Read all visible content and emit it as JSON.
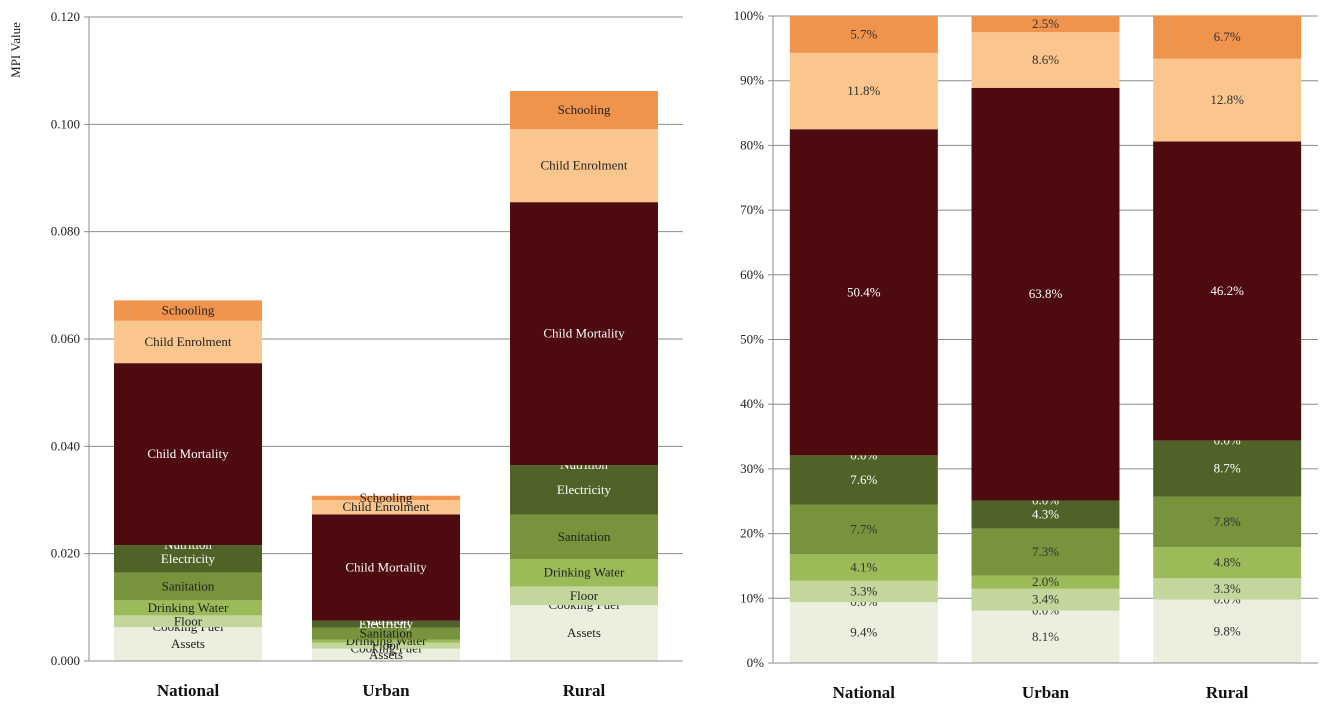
{
  "chart_data": [
    {
      "type": "bar",
      "stacked": true,
      "ylabel": "MPI Value",
      "ylim": [
        0,
        0.12
      ],
      "yticks": [
        "0.000",
        "0.020",
        "0.040",
        "0.060",
        "0.080",
        "0.100",
        "0.120"
      ],
      "categories": [
        "National",
        "Urban",
        "Rural"
      ],
      "grid": true,
      "series": [
        {
          "name": "Assets",
          "color": "#ebefde",
          "label_color": "#222222",
          "values": [
            0.0063,
            0.0023,
            0.0104
          ]
        },
        {
          "name": "Cooking Fuel",
          "color": "#d4e1b5",
          "label_color": "#222222",
          "values": [
            0.0,
            0.0,
            0.0
          ]
        },
        {
          "name": "Floor",
          "color": "#c3d69b",
          "label_color": "#222222",
          "values": [
            0.0022,
            0.0011,
            0.0035
          ]
        },
        {
          "name": "Drinking Water",
          "color": "#9bbb59",
          "label_color": "#222222",
          "values": [
            0.0028,
            0.0006,
            0.0051
          ]
        },
        {
          "name": "Sanitation",
          "color": "#77933c",
          "label_color": "#222222",
          "values": [
            0.0052,
            0.0022,
            0.0083
          ]
        },
        {
          "name": "Electricity",
          "color": "#4f6228",
          "label_color": "#ffffff",
          "values": [
            0.0051,
            0.0013,
            0.0092
          ]
        },
        {
          "name": "Nutrition",
          "color": "#3f4f20",
          "label_color": "#ffffff",
          "values": [
            0.0,
            0.0,
            0.0
          ]
        },
        {
          "name": "Child Mortality",
          "color": "#4d0b0f",
          "label_color": "#ffffff",
          "values": [
            0.0339,
            0.0198,
            0.049
          ]
        },
        {
          "name": "Child Enrolment",
          "color": "#fac68d",
          "label_color": "#222222",
          "values": [
            0.0079,
            0.0027,
            0.0136
          ]
        },
        {
          "name": "Schooling",
          "color": "#f0934c",
          "label_color": "#222222",
          "values": [
            0.0038,
            0.0008,
            0.0071
          ]
        }
      ]
    },
    {
      "type": "bar",
      "stacked": true,
      "ylim": [
        0,
        100
      ],
      "yticks": [
        "0%",
        "10%",
        "20%",
        "30%",
        "40%",
        "50%",
        "60%",
        "70%",
        "80%",
        "90%",
        "100%"
      ],
      "categories": [
        "National",
        "Urban",
        "Rural"
      ],
      "grid": true,
      "series": [
        {
          "color": "#ebefde",
          "label_color": "#333333",
          "values": [
            9.4,
            8.1,
            9.8
          ],
          "labels": [
            "9.4%",
            "8.1%",
            "9.8%"
          ]
        },
        {
          "color": "#d4e1b5",
          "label_color": "#333333",
          "values": [
            0.0,
            0.0,
            0.0
          ],
          "labels": [
            "0.0%",
            "0.0%",
            "0.0%"
          ]
        },
        {
          "color": "#c3d69b",
          "label_color": "#333333",
          "values": [
            3.3,
            3.4,
            3.3
          ],
          "labels": [
            "3.3%",
            "3.4%",
            "3.3%"
          ]
        },
        {
          "color": "#9bbb59",
          "label_color": "#333333",
          "values": [
            4.1,
            2.0,
            4.8
          ],
          "labels": [
            "4.1%",
            "2.0%",
            "4.8%"
          ]
        },
        {
          "color": "#77933c",
          "label_color": "#333333",
          "values": [
            7.7,
            7.3,
            7.8
          ],
          "labels": [
            "7.7%",
            "7.3%",
            "7.8%"
          ]
        },
        {
          "color": "#4f6228",
          "label_color": "#ffffff",
          "values": [
            7.6,
            4.3,
            8.7
          ],
          "labels": [
            "7.6%",
            "4.3%",
            "8.7%"
          ]
        },
        {
          "color": "#3f4f20",
          "label_color": "#ffffff",
          "values": [
            0.0,
            0.0,
            0.0
          ],
          "labels": [
            "0.0%",
            "0.0%",
            "0.0%"
          ]
        },
        {
          "color": "#4d0b0f",
          "label_color": "#ffffff",
          "values": [
            50.4,
            63.8,
            46.2
          ],
          "labels": [
            "50.4%",
            "63.8%",
            "46.2%"
          ]
        },
        {
          "color": "#fac68d",
          "label_color": "#333333",
          "values": [
            11.8,
            8.6,
            12.8
          ],
          "labels": [
            "11.8%",
            "8.6%",
            "12.8%"
          ]
        },
        {
          "color": "#f0934c",
          "label_color": "#333333",
          "values": [
            5.7,
            2.5,
            6.7
          ],
          "labels": [
            "5.7%",
            "2.5%",
            "6.7%"
          ]
        }
      ]
    }
  ]
}
